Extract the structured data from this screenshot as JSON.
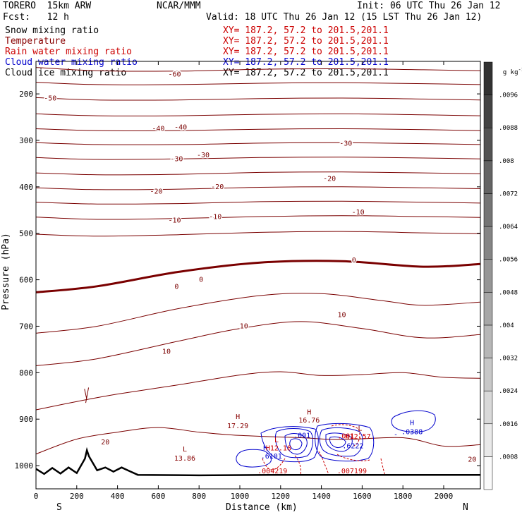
{
  "header": {
    "model": "TORERO  15km ARW",
    "org": "NCAR/MMM",
    "init": "Init: 06 UTC Thu 26 Jan 12",
    "fcst": "Fcst:   12 h",
    "valid": "Valid: 18 UTC Thu 26 Jan 12 (15 LST Thu 26 Jan 12)"
  },
  "fields": [
    {
      "label": "Snow mixing ratio",
      "xy": "XY= 187.2, 57.2 to 201.5,201.1",
      "color": "#000000"
    },
    {
      "label": "Temperature",
      "xy": "XY= 187.2, 57.2 to 201.5,201.1",
      "color": "#cc0000"
    },
    {
      "label": "Rain water mixing ratio",
      "xy": "XY= 187.2, 57.2 to 201.5,201.1",
      "color": "#cc0000"
    },
    {
      "label": "Cloud water mixing ratio",
      "xy": "XY= 187.2, 57.2 to 201.5,201.1",
      "color": "#0000cc"
    },
    {
      "label": "Cloud ice mixing ratio",
      "xy": "XY= 187.2, 57.2 to 201.5,201.1",
      "color": "#000000"
    }
  ],
  "chart_data": {
    "type": "contour",
    "xlabel": "Distance (km)",
    "ylabel": "Pressure (hPa)",
    "xlim": [
      0,
      2180
    ],
    "ylim": [
      1050,
      130
    ],
    "xticks": [
      0,
      200,
      400,
      600,
      800,
      1000,
      1200,
      1400,
      1600,
      1800,
      2000
    ],
    "yticks": [
      200,
      300,
      400,
      500,
      600,
      700,
      800,
      900,
      1000
    ],
    "start_label": "S",
    "end_label": "N",
    "temperature_contours": [
      {
        "value": -60,
        "p": [
          [
            0,
            143
          ],
          [
            300,
            150
          ],
          [
            700,
            151
          ],
          [
            1100,
            147
          ],
          [
            1500,
            146
          ],
          [
            1900,
            148
          ],
          [
            2180,
            150
          ]
        ]
      },
      {
        "value": -55,
        "p": [
          [
            0,
            175
          ],
          [
            300,
            180
          ],
          [
            700,
            180
          ],
          [
            1100,
            177
          ],
          [
            1500,
            176
          ],
          [
            1900,
            178
          ],
          [
            2180,
            180
          ]
        ]
      },
      {
        "value": -50,
        "p": [
          [
            0,
            208
          ],
          [
            300,
            213
          ],
          [
            700,
            213
          ],
          [
            1100,
            210
          ],
          [
            1500,
            209
          ],
          [
            1900,
            211
          ],
          [
            2180,
            213
          ]
        ]
      },
      {
        "value": -45,
        "p": [
          [
            0,
            243
          ],
          [
            300,
            247
          ],
          [
            700,
            247
          ],
          [
            1100,
            244
          ],
          [
            1500,
            243
          ],
          [
            1900,
            245
          ],
          [
            2180,
            247
          ]
        ]
      },
      {
        "value": -40,
        "p": [
          [
            0,
            275
          ],
          [
            300,
            279
          ],
          [
            700,
            279
          ],
          [
            1100,
            276
          ],
          [
            1500,
            275
          ],
          [
            1900,
            277
          ],
          [
            2180,
            279
          ]
        ]
      },
      {
        "value": -35,
        "p": [
          [
            0,
            305
          ],
          [
            300,
            309
          ],
          [
            700,
            309
          ],
          [
            1100,
            306
          ],
          [
            1500,
            305
          ],
          [
            1900,
            307
          ],
          [
            2180,
            309
          ]
        ]
      },
      {
        "value": -30,
        "p": [
          [
            0,
            337
          ],
          [
            300,
            341
          ],
          [
            700,
            340
          ],
          [
            1100,
            337
          ],
          [
            1500,
            336
          ],
          [
            1900,
            338
          ],
          [
            2180,
            340
          ]
        ]
      },
      {
        "value": -25,
        "p": [
          [
            0,
            370
          ],
          [
            300,
            374
          ],
          [
            700,
            373
          ],
          [
            1100,
            369
          ],
          [
            1500,
            368
          ],
          [
            1900,
            370
          ],
          [
            2180,
            372
          ]
        ]
      },
      {
        "value": -20,
        "p": [
          [
            0,
            402
          ],
          [
            300,
            406
          ],
          [
            700,
            405
          ],
          [
            1100,
            401
          ],
          [
            1500,
            400
          ],
          [
            1900,
            402
          ],
          [
            2180,
            404
          ]
        ]
      },
      {
        "value": -15,
        "p": [
          [
            0,
            433
          ],
          [
            300,
            437
          ],
          [
            700,
            436
          ],
          [
            1100,
            432
          ],
          [
            1500,
            431
          ],
          [
            1900,
            433
          ],
          [
            2180,
            435
          ]
        ]
      },
      {
        "value": -10,
        "p": [
          [
            0,
            465
          ],
          [
            300,
            470
          ],
          [
            700,
            468
          ],
          [
            1100,
            464
          ],
          [
            1500,
            462
          ],
          [
            1900,
            464
          ],
          [
            2180,
            466
          ]
        ]
      },
      {
        "value": -5,
        "p": [
          [
            0,
            502
          ],
          [
            300,
            506
          ],
          [
            700,
            503
          ],
          [
            1100,
            498
          ],
          [
            1500,
            496
          ],
          [
            1900,
            499
          ],
          [
            2180,
            501
          ]
        ]
      },
      {
        "value": 0,
        "p": [
          [
            0,
            627
          ],
          [
            300,
            614
          ],
          [
            700,
            583
          ],
          [
            1100,
            563
          ],
          [
            1500,
            560
          ],
          [
            1900,
            572
          ],
          [
            2180,
            566
          ]
        ]
      },
      {
        "value": 5,
        "p": [
          [
            0,
            715
          ],
          [
            300,
            700
          ],
          [
            700,
            662
          ],
          [
            1100,
            634
          ],
          [
            1400,
            630
          ],
          [
            1700,
            645
          ],
          [
            1900,
            655
          ],
          [
            2180,
            648
          ]
        ]
      },
      {
        "value": 10,
        "p": [
          [
            0,
            785
          ],
          [
            300,
            770
          ],
          [
            700,
            732
          ],
          [
            1000,
            705
          ],
          [
            1300,
            690
          ],
          [
            1600,
            705
          ],
          [
            1900,
            725
          ],
          [
            2180,
            718
          ]
        ]
      },
      {
        "value": 15,
        "p": [
          [
            0,
            880
          ],
          [
            200,
            862
          ],
          [
            400,
            846
          ],
          [
            700,
            826
          ],
          [
            1000,
            805
          ],
          [
            1200,
            798
          ],
          [
            1400,
            806
          ],
          [
            1600,
            804
          ],
          [
            1800,
            800
          ],
          [
            2000,
            810
          ],
          [
            2180,
            812
          ]
        ]
      },
      {
        "value": 20,
        "p": [
          [
            0,
            975
          ],
          [
            200,
            943
          ],
          [
            400,
            928
          ],
          [
            600,
            918
          ],
          [
            800,
            928
          ],
          [
            1000,
            935
          ],
          [
            1300,
            940
          ],
          [
            1500,
            944
          ],
          [
            1800,
            940
          ],
          [
            2000,
            958
          ],
          [
            2180,
            955
          ]
        ]
      }
    ],
    "temperature_labels": [
      {
        "text": "-60",
        "x": 680,
        "p": 158
      },
      {
        "text": "-50",
        "x": 70,
        "p": 210
      },
      {
        "text": "-40",
        "x": 600,
        "p": 275
      },
      {
        "text": "-40",
        "x": 710,
        "p": 272
      },
      {
        "text": "-30",
        "x": 690,
        "p": 340
      },
      {
        "text": "-30",
        "x": 820,
        "p": 332
      },
      {
        "text": "-30",
        "x": 1520,
        "p": 307
      },
      {
        "text": "-20",
        "x": 590,
        "p": 410
      },
      {
        "text": "-20",
        "x": 890,
        "p": 400
      },
      {
        "text": "-20",
        "x": 1440,
        "p": 383
      },
      {
        "text": "-10",
        "x": 680,
        "p": 472
      },
      {
        "text": "-10",
        "x": 880,
        "p": 465
      },
      {
        "text": "-10",
        "x": 1580,
        "p": 455
      },
      {
        "text": "0",
        "x": 690,
        "p": 615
      },
      {
        "text": "0",
        "x": 810,
        "p": 600
      },
      {
        "text": "0",
        "x": 1560,
        "p": 558
      },
      {
        "text": "10",
        "x": 1500,
        "p": 676
      },
      {
        "text": "10",
        "x": 1020,
        "p": 700
      },
      {
        "text": "10",
        "x": 640,
        "p": 755
      },
      {
        "text": "20",
        "x": 340,
        "p": 950
      },
      {
        "text": "20",
        "x": 2140,
        "p": 987
      }
    ],
    "terrain_km": [
      0,
      40,
      80,
      120,
      160,
      200,
      240,
      250,
      260,
      300,
      340,
      380,
      420,
      460,
      500,
      800,
      1200,
      1600,
      2000,
      2180
    ],
    "terrain_hpa": [
      1007,
      1018,
      1005,
      1017,
      1004,
      1016,
      985,
      967,
      980,
      1010,
      1004,
      1013,
      1004,
      1012,
      1020,
      1021,
      1020,
      1020,
      1020,
      1020
    ],
    "annotations": [
      {
        "text": "H",
        "x": 990,
        "p": 895,
        "color": "#880000"
      },
      {
        "text": "17.29",
        "x": 990,
        "p": 915,
        "color": "#880000"
      },
      {
        "text": "L",
        "x": 730,
        "p": 965,
        "color": "#880000"
      },
      {
        "text": "13.86",
        "x": 730,
        "p": 985,
        "color": "#880000"
      },
      {
        "text": "H",
        "x": 1340,
        "p": 885,
        "color": "#880000"
      },
      {
        "text": "16.76",
        "x": 1340,
        "p": 903,
        "color": "#880000"
      },
      {
        "text": "L",
        "x": 1180,
        "p": 945,
        "color": "#cc0000"
      },
      {
        "text": "L",
        "x": 1590,
        "p": 920,
        "color": "#880000"
      },
      {
        "text": "H",
        "x": 1125,
        "p": 963,
        "color": "#0000cc"
      },
      {
        "text": ".6101",
        "x": 1155,
        "p": 980,
        "color": "#0000cc"
      },
      {
        "text": "H12.18",
        "x": 1190,
        "p": 963,
        "color": "#cc0000"
      },
      {
        "text": ".001",
        "x": 1305,
        "p": 935,
        "color": "#0000cc"
      },
      {
        "text": "H12.57",
        "x": 1580,
        "p": 938,
        "color": "#cc0000"
      },
      {
        "text": ".6222",
        "x": 1555,
        "p": 958,
        "color": "#0000cc"
      },
      {
        "text": ".001",
        "x": 1520,
        "p": 937,
        "color": "#cc0000"
      },
      {
        "text": ".004219",
        "x": 1160,
        "p": 1012,
        "color": "#cc0000"
      },
      {
        "text": ".007199",
        "x": 1550,
        "p": 1012,
        "color": "#cc0000"
      },
      {
        "text": "H",
        "x": 1845,
        "p": 908,
        "color": "#0000cc"
      },
      {
        "text": ".0388",
        "x": 1845,
        "p": 928,
        "color": "#0000cc"
      },
      {
        "text": "-",
        "x": 1765,
        "p": 933,
        "color": "#0000cc"
      }
    ],
    "colorbar": {
      "unit": "g kg",
      "unit_exp": "-1",
      "ticks": [
        "0",
        ".0008",
        ".0016",
        ".0024",
        ".0032",
        ".004",
        ".0048",
        ".0056",
        ".0064",
        ".0072",
        ".008",
        ".0088",
        ".0096"
      ],
      "tick_values": [
        0,
        0.0008,
        0.0016,
        0.0024,
        0.0032,
        0.004,
        0.0048,
        0.0056,
        0.0064,
        0.0072,
        0.008,
        0.0088,
        0.0096
      ],
      "range": [
        0,
        0.0104
      ]
    }
  }
}
